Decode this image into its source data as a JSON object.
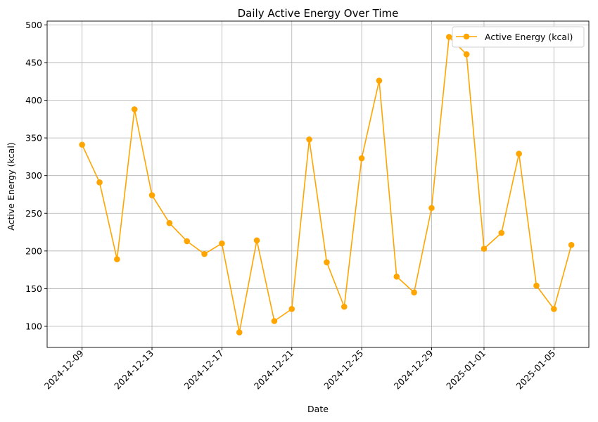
{
  "chart_data": {
    "type": "line",
    "title": "Daily Active Energy Over Time",
    "xlabel": "Date",
    "ylabel": "Active Energy (kcal)",
    "grid": true,
    "legend_position": "top-right",
    "x_ticks": [
      "2024-12-09",
      "2024-12-13",
      "2024-12-17",
      "2024-12-21",
      "2024-12-25",
      "2024-12-29",
      "2025-01-01",
      "2025-01-05"
    ],
    "y_ticks": [
      100,
      150,
      200,
      250,
      300,
      350,
      400,
      450,
      500
    ],
    "ylim": [
      72,
      505
    ],
    "xlim": [
      "2024-12-07",
      "2025-01-07"
    ],
    "series": [
      {
        "name": "Active Energy (kcal)",
        "color": "#ffa500",
        "marker": "circle",
        "points": [
          {
            "x": "2024-12-09",
            "y": 341
          },
          {
            "x": "2024-12-10",
            "y": 291
          },
          {
            "x": "2024-12-11",
            "y": 189
          },
          {
            "x": "2024-12-12",
            "y": 388
          },
          {
            "x": "2024-12-13",
            "y": 274
          },
          {
            "x": "2024-12-14",
            "y": 237
          },
          {
            "x": "2024-12-15",
            "y": 213
          },
          {
            "x": "2024-12-16",
            "y": 196
          },
          {
            "x": "2024-12-17",
            "y": 210
          },
          {
            "x": "2024-12-18",
            "y": 92
          },
          {
            "x": "2024-12-19",
            "y": 214
          },
          {
            "x": "2024-12-20",
            "y": 107
          },
          {
            "x": "2024-12-21",
            "y": 123
          },
          {
            "x": "2024-12-22",
            "y": 348
          },
          {
            "x": "2024-12-23",
            "y": 185
          },
          {
            "x": "2024-12-24",
            "y": 126
          },
          {
            "x": "2024-12-25",
            "y": 323
          },
          {
            "x": "2024-12-26",
            "y": 426
          },
          {
            "x": "2024-12-27",
            "y": 166
          },
          {
            "x": "2024-12-28",
            "y": 145
          },
          {
            "x": "2024-12-29",
            "y": 257
          },
          {
            "x": "2024-12-30",
            "y": 484
          },
          {
            "x": "2024-12-31",
            "y": 461
          },
          {
            "x": "2025-01-01",
            "y": 203
          },
          {
            "x": "2025-01-02",
            "y": 224
          },
          {
            "x": "2025-01-03",
            "y": 329
          },
          {
            "x": "2025-01-04",
            "y": 154
          },
          {
            "x": "2025-01-05",
            "y": 123
          },
          {
            "x": "2025-01-06",
            "y": 208
          }
        ]
      }
    ]
  }
}
